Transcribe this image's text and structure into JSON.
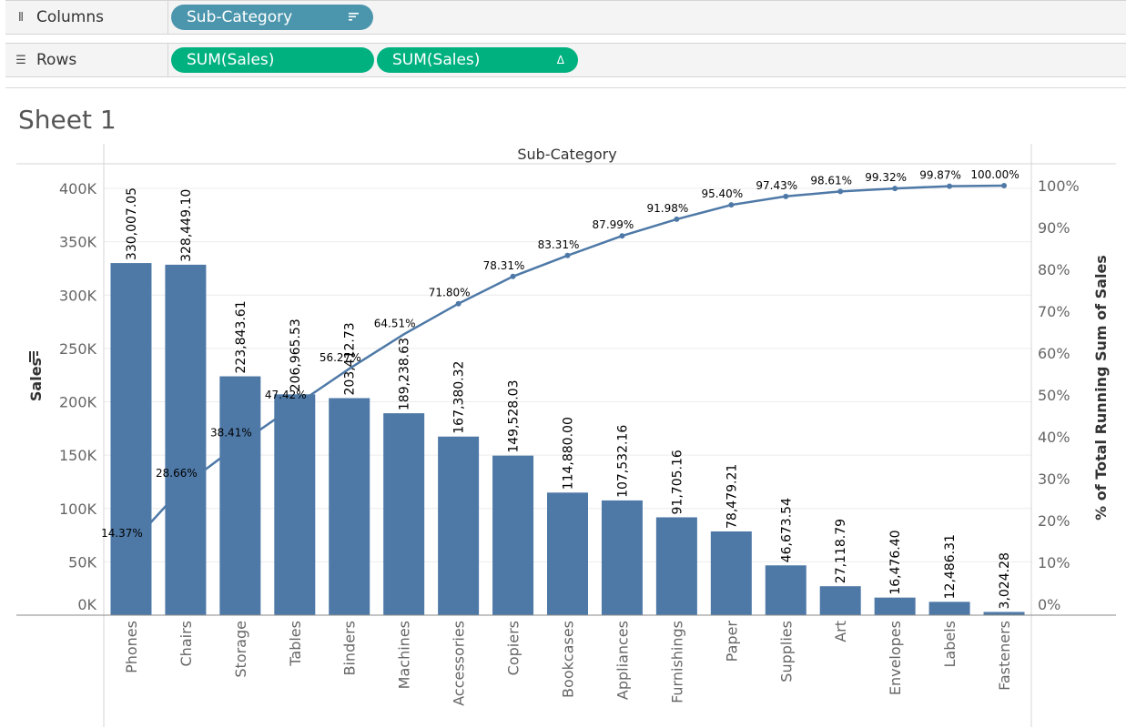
{
  "columns_shelf": {
    "label": "Columns",
    "icon": "columns-icon",
    "pill": {
      "label": "Sub-Category",
      "icon": "sort-icon"
    }
  },
  "rows_shelf": {
    "label": "Rows",
    "icon": "rows-icon",
    "pills": [
      {
        "label": "SUM(Sales)"
      },
      {
        "label": "SUM(Sales)",
        "icon": "delta-icon",
        "icon_glyph": "Δ"
      }
    ]
  },
  "sheet": {
    "title": "Sheet 1"
  },
  "colors": {
    "bar": "#4e79a7",
    "line": "#4e79a7",
    "dimension_pill": "#4c96ad",
    "measure_pill": "#00b180"
  },
  "chart_data": {
    "type": "bar",
    "header": "Sub-Category",
    "ylabel": "Sales",
    "y2label": "% of Total Running Sum of Sales",
    "ylim": [
      0,
      420000
    ],
    "y2lim": [
      0,
      100
    ],
    "y_ticks": [
      "0K",
      "50K",
      "100K",
      "150K",
      "200K",
      "250K",
      "300K",
      "350K",
      "400K"
    ],
    "y2_ticks": [
      "0%",
      "10%",
      "20%",
      "30%",
      "40%",
      "50%",
      "60%",
      "70%",
      "80%",
      "90%",
      "100%"
    ],
    "categories": [
      "Phones",
      "Chairs",
      "Storage",
      "Tables",
      "Binders",
      "Machines",
      "Accessories",
      "Copiers",
      "Bookcases",
      "Appliances",
      "Furnishings",
      "Paper",
      "Supplies",
      "Art",
      "Envelopes",
      "Labels",
      "Fasteners"
    ],
    "values": [
      330007.05,
      328449.1,
      223843.61,
      206965.53,
      203412.73,
      189238.63,
      167380.32,
      149528.03,
      114880.0,
      107532.16,
      91705.16,
      78479.21,
      46673.54,
      27118.79,
      16476.4,
      12486.31,
      3024.28
    ],
    "value_labels": [
      "330,007.05",
      "328,449.10",
      "223,843.61",
      "206,965.53",
      "203,412.73",
      "189,238.63",
      "167,380.32",
      "149,528.03",
      "114,880.00",
      "107,532.16",
      "91,705.16",
      "78,479.21",
      "46,673.54",
      "27,118.79",
      "16,476.40",
      "12,486.31",
      "3,024.28"
    ],
    "running_pct": [
      14.37,
      28.66,
      38.41,
      47.42,
      56.27,
      64.51,
      71.8,
      78.31,
      83.31,
      87.99,
      91.98,
      95.4,
      97.43,
      98.61,
      99.32,
      99.87,
      100.0
    ],
    "running_pct_labels": [
      "14.37%",
      "28.66%",
      "38.41%",
      "47.42%",
      "56.27%",
      "64.51%",
      "71.80%",
      "78.31%",
      "83.31%",
      "87.99%",
      "91.98%",
      "95.40%",
      "97.43%",
      "98.61%",
      "99.32%",
      "99.87%",
      "100.00%"
    ],
    "grid": true
  }
}
